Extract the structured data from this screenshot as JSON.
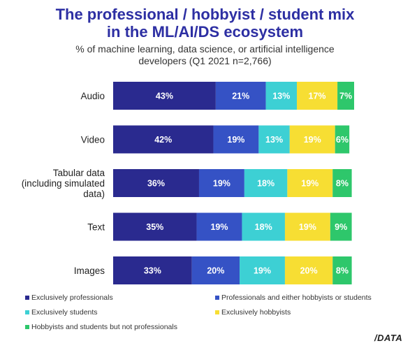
{
  "title_line1": "The professional / hobbyist / student mix",
  "title_line2": "in the ML/AI/DS ecosystem",
  "subtitle_line1": "% of machine learning, data science, or artificial intelligence",
  "subtitle_line2": "developers (Q1 2021 n=2,766)",
  "logo_text": "/DATA",
  "chart_data": {
    "type": "bar",
    "orientation": "horizontal",
    "stacked": true,
    "categories": [
      [
        "Audio"
      ],
      [
        "Video"
      ],
      [
        "Tabular data",
        "(including simulated",
        "data)"
      ],
      [
        "Text"
      ],
      [
        "Images"
      ]
    ],
    "series": [
      {
        "name": "Exclusively professionals",
        "color": "#2a2a8f",
        "label_color": "#ffffff",
        "values": [
          43,
          42,
          36,
          35,
          33
        ]
      },
      {
        "name": "Professionals and either hobbyists or students",
        "color": "#3552c5",
        "label_color": "#ffffff",
        "values": [
          21,
          19,
          19,
          19,
          20
        ]
      },
      {
        "name": "Exclusively students",
        "color": "#3dd0d4",
        "label_color": "#ffffff",
        "values": [
          13,
          13,
          18,
          18,
          19
        ]
      },
      {
        "name": "Exclusively hobbyists",
        "color": "#f7de33",
        "label_color": "#ffffff",
        "values": [
          17,
          19,
          19,
          19,
          20
        ]
      },
      {
        "name": "Hobbyists and students but not professionals",
        "color": "#2ec76b",
        "label_color": "#ffffff",
        "values": [
          7,
          6,
          8,
          9,
          8
        ]
      }
    ],
    "value_suffix": "%",
    "xlim": [
      0,
      101
    ],
    "grid": false,
    "legend_position": "bottom"
  }
}
